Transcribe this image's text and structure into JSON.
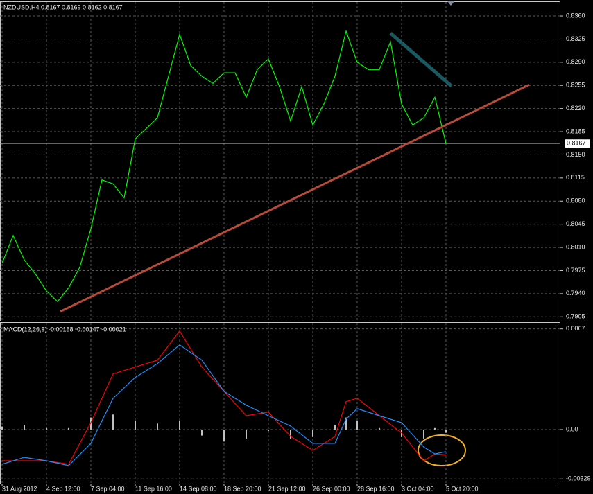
{
  "chart_data": [
    {
      "type": "line",
      "title": "NZDUSD,H4  0.8167 0.8169 0.8162 0.8167",
      "x": [
        0,
        4,
        8,
        12,
        16,
        20,
        24,
        28,
        32,
        36,
        40,
        44,
        48,
        52,
        56,
        60,
        64,
        68,
        72,
        76,
        80,
        84,
        88,
        92,
        96,
        100,
        104,
        108,
        112,
        116,
        120,
        124,
        128,
        132,
        136,
        140,
        144,
        148,
        152,
        156,
        160
      ],
      "values": [
        0.7986,
        0.8028,
        0.7991,
        0.797,
        0.7944,
        0.7928,
        0.7949,
        0.798,
        0.8038,
        0.8112,
        0.8106,
        0.8085,
        0.8174,
        0.819,
        0.8206,
        0.8269,
        0.8332,
        0.8285,
        0.8269,
        0.8258,
        0.8274,
        0.8274,
        0.8237,
        0.8279,
        0.8295,
        0.8253,
        0.8201,
        0.8253,
        0.8195,
        0.8227,
        0.8269,
        0.8337,
        0.829,
        0.8279,
        0.8279,
        0.8321,
        0.8227,
        0.8195,
        0.8206,
        0.8237,
        0.8167
      ],
      "color": "#00ff00",
      "current_price": 0.8167,
      "trendlines": [
        {
          "x": [
            21,
            190
          ],
          "values": [
            0.7913,
            0.8256
          ],
          "color": "#b84a3a"
        },
        {
          "x": [
            140,
            162
          ],
          "values": [
            0.8334,
            0.8254
          ],
          "color": "#1a5a60"
        }
      ],
      "xlim": [
        0,
        201
      ],
      "ylim": [
        0.7899,
        0.8381
      ],
      "yticks": [
        {
          "value": 0.836,
          "label": "0.8360"
        },
        {
          "value": 0.8325,
          "label": "0.8325"
        },
        {
          "value": 0.829,
          "label": "0.8290"
        },
        {
          "value": 0.8255,
          "label": "0.8255"
        },
        {
          "value": 0.822,
          "label": "0.8220"
        },
        {
          "value": 0.8185,
          "label": "0.8185"
        },
        {
          "value": 0.815,
          "label": "0.8150"
        },
        {
          "value": 0.8115,
          "label": "0.8115"
        },
        {
          "value": 0.808,
          "label": "0.8080"
        },
        {
          "value": 0.8045,
          "label": "0.8045"
        },
        {
          "value": 0.801,
          "label": "0.8010"
        },
        {
          "value": 0.7975,
          "label": "0.7975"
        },
        {
          "value": 0.794,
          "label": "0.7940"
        },
        {
          "value": 0.7905,
          "label": "0.7905"
        }
      ],
      "grid": true
    },
    {
      "type": "combo",
      "title": "MACD(12,26,9) -0.00168 -0.00147 -0.00021",
      "x": [
        0,
        8,
        16,
        24,
        32,
        40,
        48,
        56,
        64,
        72,
        80,
        88,
        96,
        104,
        112,
        120,
        124,
        128,
        136,
        144,
        152,
        156,
        160
      ],
      "series": [
        {
          "type": "bar",
          "color": "#c0c0c0",
          "values": [
            0.0002,
            0.0003,
            0.0001,
            0.0001,
            0.0008,
            0.001,
            0.0006,
            0.0004,
            0.0006,
            -0.0004,
            -0.0008,
            -0.0006,
            -0.0001,
            -0.0006,
            -0.0005,
            0.0003,
            0.0008,
            0.0006,
            0.0001,
            -0.0005,
            -0.0006,
            0.0001,
            -0.00021
          ]
        },
        {
          "type": "line",
          "color": "#ff0000",
          "values": [
            -0.00208,
            -0.00208,
            -0.00208,
            -0.00231,
            0.00046,
            0.0037,
            0.00416,
            0.00462,
            0.00656,
            0.00416,
            0.00254,
            0.00092,
            0.00116,
            -0.00046,
            -0.00139,
            -0.00046,
            0.00185,
            0.00208,
            0.00092,
            -0.00023,
            -0.00208,
            -0.00162,
            -0.00168
          ]
        },
        {
          "type": "line",
          "color": "#1e90ff",
          "values": [
            -0.00231,
            -0.00185,
            -0.00208,
            -0.0024,
            -0.00092,
            0.00208,
            0.00347,
            0.00439,
            0.00564,
            0.00462,
            0.00254,
            0.00162,
            0.00092,
            0.00023,
            -0.00092,
            -0.00092,
            0.00069,
            0.00139,
            0.00092,
            0.00046,
            -0.00116,
            -0.00162,
            -0.00147
          ]
        }
      ],
      "xlim": [
        0,
        201
      ],
      "ylim": [
        -0.0036,
        0.0071
      ],
      "yticks": [
        0.0067,
        {
          "value": 0,
          "label": "0.00"
        },
        -0.00329
      ],
      "xticks": [
        {
          "value": 0,
          "label": "31 Aug 2012"
        },
        {
          "value": 16,
          "label": "4 Sep 12:00"
        },
        {
          "value": 32,
          "label": "7 Sep 04:00"
        },
        {
          "value": 48,
          "label": "11 Sep 16:00"
        },
        {
          "value": 64,
          "label": "14 Sep 08:00"
        },
        {
          "value": 80,
          "label": "18 Sep 20:00"
        },
        {
          "value": 96,
          "label": "21 Sep 12:00"
        },
        {
          "value": 112,
          "label": "26 Sep 00:00"
        },
        {
          "value": 128,
          "label": "28 Sep 16:00"
        },
        {
          "value": 144,
          "label": "3 Oct 04:00"
        },
        {
          "value": 160,
          "label": "5 Oct 20:00"
        }
      ],
      "grid": true
    }
  ]
}
